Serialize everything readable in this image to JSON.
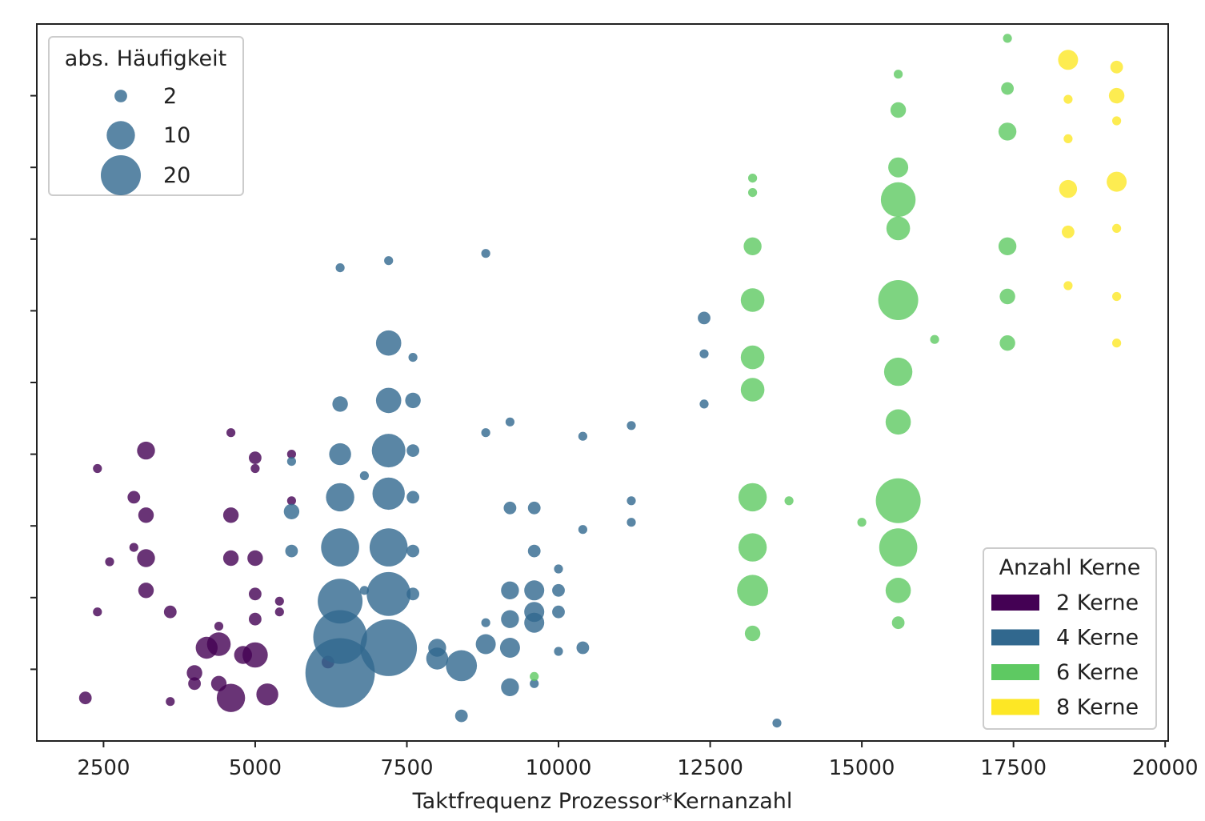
{
  "chart_data": {
    "type": "scatter",
    "xlabel": "Taktfrequenz Prozessor*Kernanzahl",
    "ylabel": "",
    "xlim": [
      1400,
      20050
    ],
    "ylim": [
      -20,
      20
    ],
    "x_ticks": [
      2500,
      5000,
      7500,
      10000,
      12500,
      15000,
      17500,
      20000
    ],
    "y_ticks": [
      -16,
      -12,
      -8,
      -4,
      0,
      4,
      8,
      12,
      16
    ],
    "grid": false,
    "size_legend": {
      "title": "abs. Häufigkeit",
      "position": "top-left",
      "entries": [
        {
          "label": "2",
          "size": 2
        },
        {
          "label": "10",
          "size": 10
        },
        {
          "label": "20",
          "size": 20
        }
      ]
    },
    "color_legend": {
      "title": "Anzahl Kerne",
      "position": "bottom-right",
      "entries": [
        {
          "label": "2 Kerne",
          "color": "#440154"
        },
        {
          "label": "4 Kerne",
          "color": "#31688e"
        },
        {
          "label": "6 Kerne",
          "color": "#5ec962"
        },
        {
          "label": "8 Kerne",
          "color": "#fde725"
        }
      ]
    },
    "series": [
      {
        "cores": 2,
        "color": "#440154",
        "points": [
          [
            2200,
            -17.6,
            2
          ],
          [
            2400,
            -12.8,
            1
          ],
          [
            2400,
            -4.8,
            1
          ],
          [
            2600,
            -10.0,
            1
          ],
          [
            3000,
            -6.4,
            2
          ],
          [
            3000,
            -9.2,
            1
          ],
          [
            3200,
            -3.8,
            4
          ],
          [
            3200,
            -7.4,
            3
          ],
          [
            3200,
            -9.8,
            4
          ],
          [
            3200,
            -11.6,
            3
          ],
          [
            3600,
            -12.8,
            2
          ],
          [
            3600,
            -17.8,
            1
          ],
          [
            4000,
            -16.2,
            3
          ],
          [
            4000,
            -16.8,
            2
          ],
          [
            4200,
            -14.8,
            6
          ],
          [
            4400,
            -14.6,
            7
          ],
          [
            4400,
            -13.6,
            1
          ],
          [
            4400,
            -16.8,
            3
          ],
          [
            4600,
            -17.6,
            10
          ],
          [
            4600,
            -2.8,
            1
          ],
          [
            4600,
            -7.4,
            3
          ],
          [
            4600,
            -9.8,
            3
          ],
          [
            4800,
            -15.2,
            4
          ],
          [
            5000,
            -11.8,
            2
          ],
          [
            5000,
            -15.2,
            8
          ],
          [
            5000,
            -13.2,
            2
          ],
          [
            5000,
            -9.8,
            3
          ],
          [
            5000,
            -4.2,
            2
          ],
          [
            5000,
            -4.8,
            1
          ],
          [
            5200,
            -17.4,
            6
          ],
          [
            5400,
            -12.8,
            1
          ],
          [
            5400,
            -12.2,
            1
          ],
          [
            5600,
            -4.0,
            1
          ],
          [
            5600,
            -6.6,
            1
          ],
          [
            6200,
            -15.6,
            2
          ]
        ]
      },
      {
        "cores": 4,
        "color": "#31688e",
        "points": [
          [
            5600,
            -4.4,
            1
          ],
          [
            5600,
            -7.2,
            3
          ],
          [
            5600,
            -9.4,
            2
          ],
          [
            6400,
            6.4,
            1
          ],
          [
            6400,
            -1.2,
            3
          ],
          [
            6400,
            -4.0,
            6
          ],
          [
            6400,
            -6.4,
            10
          ],
          [
            6400,
            -9.2,
            18
          ],
          [
            6400,
            -12.2,
            25
          ],
          [
            6400,
            -14.2,
            36
          ],
          [
            6400,
            -16.2,
            60
          ],
          [
            6800,
            -5.2,
            1
          ],
          [
            6800,
            -11.6,
            1
          ],
          [
            7200,
            6.8,
            1
          ],
          [
            7200,
            2.2,
            8
          ],
          [
            7200,
            -1.0,
            8
          ],
          [
            7200,
            -3.8,
            14
          ],
          [
            7200,
            -6.2,
            13
          ],
          [
            7200,
            -9.2,
            18
          ],
          [
            7200,
            -11.8,
            24
          ],
          [
            7200,
            -14.8,
            40
          ],
          [
            7600,
            1.4,
            1
          ],
          [
            7600,
            -1.0,
            3
          ],
          [
            7600,
            -3.8,
            2
          ],
          [
            7600,
            -6.4,
            2
          ],
          [
            7600,
            -9.4,
            2
          ],
          [
            7600,
            -11.8,
            2
          ],
          [
            8000,
            -15.4,
            6
          ],
          [
            8000,
            -14.8,
            4
          ],
          [
            8400,
            -15.8,
            12
          ],
          [
            8400,
            -18.6,
            2
          ],
          [
            8800,
            7.2,
            1
          ],
          [
            8800,
            -2.8,
            1
          ],
          [
            8800,
            -13.4,
            1
          ],
          [
            8800,
            -14.6,
            5
          ],
          [
            9200,
            -2.2,
            1
          ],
          [
            9200,
            -7.0,
            2
          ],
          [
            9200,
            -11.6,
            4
          ],
          [
            9200,
            -13.2,
            4
          ],
          [
            9200,
            -14.8,
            5
          ],
          [
            9200,
            -17.0,
            4
          ],
          [
            9600,
            -7.0,
            2
          ],
          [
            9600,
            -9.4,
            2
          ],
          [
            9600,
            -11.6,
            5
          ],
          [
            9600,
            -12.8,
            5
          ],
          [
            9600,
            -13.4,
            5
          ],
          [
            9600,
            -16.8,
            1
          ],
          [
            10000,
            -10.4,
            1
          ],
          [
            10000,
            -11.6,
            2
          ],
          [
            10000,
            -12.8,
            2
          ],
          [
            10000,
            -15.0,
            1
          ],
          [
            10400,
            -3.0,
            1
          ],
          [
            10400,
            -8.2,
            1
          ],
          [
            10400,
            -14.8,
            2
          ],
          [
            11200,
            -2.4,
            1
          ],
          [
            11200,
            -6.6,
            1
          ],
          [
            11200,
            -7.8,
            1
          ],
          [
            12400,
            3.6,
            2
          ],
          [
            12400,
            1.6,
            1
          ],
          [
            12400,
            -1.2,
            1
          ],
          [
            13600,
            -19.0,
            1
          ]
        ]
      },
      {
        "cores": 6,
        "color": "#5ec962",
        "points": [
          [
            9600,
            -16.4,
            1
          ],
          [
            13200,
            11.4,
            1
          ],
          [
            13200,
            10.6,
            1
          ],
          [
            13200,
            7.6,
            4
          ],
          [
            13200,
            4.6,
            7
          ],
          [
            13200,
            1.4,
            7
          ],
          [
            13200,
            -0.4,
            7
          ],
          [
            13200,
            -6.4,
            10
          ],
          [
            13200,
            -9.2,
            10
          ],
          [
            13200,
            -11.6,
            12
          ],
          [
            13200,
            -14.0,
            3
          ],
          [
            13800,
            -6.6,
            1
          ],
          [
            15000,
            -7.8,
            1
          ],
          [
            15600,
            17.2,
            1
          ],
          [
            15600,
            15.2,
            3
          ],
          [
            15600,
            12.0,
            5
          ],
          [
            15600,
            10.2,
            15
          ],
          [
            15600,
            8.6,
            7
          ],
          [
            15600,
            4.6,
            20
          ],
          [
            15600,
            0.6,
            10
          ],
          [
            15600,
            -2.2,
            8
          ],
          [
            15600,
            -6.6,
            25
          ],
          [
            15600,
            -9.2,
            18
          ],
          [
            15600,
            -11.6,
            8
          ],
          [
            15600,
            -13.4,
            2
          ],
          [
            16200,
            2.4,
            1
          ],
          [
            17400,
            19.2,
            1
          ],
          [
            17400,
            16.4,
            2
          ],
          [
            17400,
            14.0,
            4
          ],
          [
            17400,
            7.6,
            4
          ],
          [
            17400,
            4.8,
            3
          ],
          [
            17400,
            2.2,
            3
          ]
        ]
      },
      {
        "cores": 8,
        "color": "#fde725",
        "points": [
          [
            18400,
            18.0,
            5
          ],
          [
            18400,
            15.8,
            1
          ],
          [
            18400,
            13.6,
            1
          ],
          [
            18400,
            10.8,
            4
          ],
          [
            18400,
            8.4,
            2
          ],
          [
            18400,
            5.4,
            1
          ],
          [
            19200,
            17.6,
            2
          ],
          [
            19200,
            16.0,
            3
          ],
          [
            19200,
            14.6,
            1
          ],
          [
            19200,
            11.2,
            5
          ],
          [
            19200,
            8.6,
            1
          ],
          [
            19200,
            4.8,
            1
          ],
          [
            19200,
            2.2,
            1
          ]
        ]
      }
    ]
  }
}
